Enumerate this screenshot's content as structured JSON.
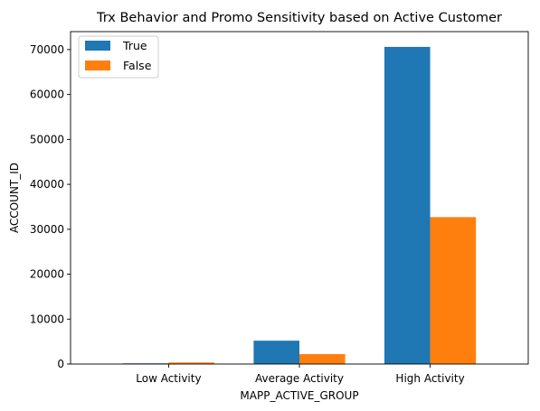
{
  "chart_data": {
    "type": "bar",
    "title": "Trx Behavior and Promo Sensitivity based on Active Customer",
    "xlabel": "MAPP_ACTIVE_GROUP",
    "ylabel": "ACCOUNT_ID",
    "categories": [
      "Low Activity",
      "Average Activity",
      "High Activity"
    ],
    "series": [
      {
        "name": "True",
        "color": "#1f77b4",
        "values": [
          150,
          5200,
          70600
        ]
      },
      {
        "name": "False",
        "color": "#ff7f0e",
        "values": [
          350,
          2200,
          32700
        ]
      }
    ],
    "ylim": [
      0,
      74000
    ],
    "yticks": [
      0,
      10000,
      20000,
      30000,
      40000,
      50000,
      60000,
      70000
    ],
    "grid": false,
    "legend": "top-left"
  }
}
